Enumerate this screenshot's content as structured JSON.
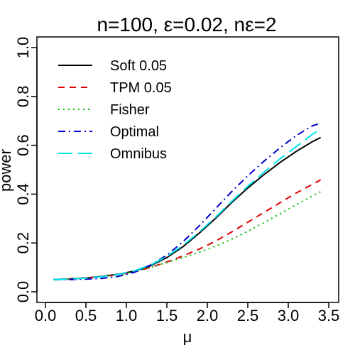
{
  "chart_data": {
    "type": "line",
    "title": "n=100, ε=0.02, nε=2",
    "xlabel": "μ",
    "ylabel": "power",
    "xlim": [
      0.1,
      3.4
    ],
    "ylim": [
      0.0,
      1.0
    ],
    "xticks": [
      "0.0",
      "0.5",
      "1.0",
      "1.5",
      "2.0",
      "2.5",
      "3.0",
      "3.5"
    ],
    "yticks": [
      "0.0",
      "0.2",
      "0.4",
      "0.6",
      "0.8",
      "1.0"
    ],
    "grid": false,
    "legend_position": "top-left",
    "x": [
      0.1,
      0.3,
      0.5,
      0.7,
      0.9,
      1.1,
      1.3,
      1.5,
      1.7,
      1.9,
      2.1,
      2.3,
      2.5,
      2.7,
      2.9,
      3.1,
      3.3,
      3.4
    ],
    "series": [
      {
        "name": "Soft 0.05",
        "color": "#000000",
        "dash": "solid",
        "values": [
          0.05,
          0.053,
          0.057,
          0.063,
          0.072,
          0.085,
          0.107,
          0.14,
          0.185,
          0.24,
          0.3,
          0.365,
          0.425,
          0.48,
          0.53,
          0.575,
          0.615,
          0.632
        ]
      },
      {
        "name": "TPM 0.05",
        "color": "#dd0000",
        "dash": "short-dash",
        "values": [
          0.05,
          0.052,
          0.056,
          0.062,
          0.07,
          0.082,
          0.1,
          0.122,
          0.147,
          0.175,
          0.207,
          0.245,
          0.285,
          0.325,
          0.365,
          0.405,
          0.44,
          0.458
        ]
      },
      {
        "name": "Fisher",
        "color": "#00bb00",
        "dash": "dotted",
        "values": [
          0.05,
          0.052,
          0.056,
          0.062,
          0.07,
          0.082,
          0.1,
          0.12,
          0.14,
          0.162,
          0.187,
          0.215,
          0.248,
          0.283,
          0.32,
          0.357,
          0.393,
          0.41
        ]
      },
      {
        "name": "Optimal",
        "color": "#0000cc",
        "dash": "dash-dot",
        "values": [
          0.05,
          0.05,
          0.052,
          0.055,
          0.063,
          0.08,
          0.11,
          0.15,
          0.205,
          0.27,
          0.34,
          0.41,
          0.475,
          0.535,
          0.59,
          0.64,
          0.68,
          0.69
        ]
      },
      {
        "name": "Omnibus",
        "color": "#00e5ee",
        "dash": "long-dash",
        "values": [
          0.05,
          0.052,
          0.056,
          0.062,
          0.071,
          0.086,
          0.11,
          0.145,
          0.19,
          0.245,
          0.305,
          0.37,
          0.432,
          0.49,
          0.545,
          0.595,
          0.645,
          0.668
        ]
      }
    ]
  }
}
